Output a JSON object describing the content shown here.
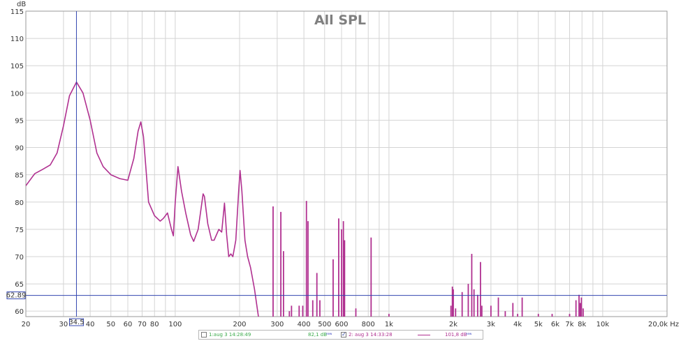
{
  "chart_data": {
    "type": "line",
    "title": "All SPL",
    "ylabel": "dB",
    "xunit": "Hz",
    "xscale": "log",
    "xlim": [
      20,
      20000
    ],
    "ylim": [
      59,
      115
    ],
    "x_tick_labels": [
      {
        "v": 20,
        "label": "20"
      },
      {
        "v": 30,
        "label": "30"
      },
      {
        "v": 40,
        "label": "40"
      },
      {
        "v": 50,
        "label": "50"
      },
      {
        "v": 60,
        "label": "60"
      },
      {
        "v": 70,
        "label": "70"
      },
      {
        "v": 80,
        "label": "80"
      },
      {
        "v": 100,
        "label": "100"
      },
      {
        "v": 200,
        "label": "200"
      },
      {
        "v": 300,
        "label": "300"
      },
      {
        "v": 400,
        "label": "400"
      },
      {
        "v": 500,
        "label": "500"
      },
      {
        "v": 600,
        "label": "600"
      },
      {
        "v": 800,
        "label": "800"
      },
      {
        "v": 1000,
        "label": "1k"
      },
      {
        "v": 2000,
        "label": "2k"
      },
      {
        "v": 3000,
        "label": "3k"
      },
      {
        "v": 4000,
        "label": "4k"
      },
      {
        "v": 5000,
        "label": "5k"
      },
      {
        "v": 6000,
        "label": "6k"
      },
      {
        "v": 7000,
        "label": "7k"
      },
      {
        "v": 8000,
        "label": "8k"
      },
      {
        "v": 10000,
        "label": "10k"
      },
      {
        "v": 20000,
        "label": "20,0k Hz"
      }
    ],
    "y_ticks": [
      60,
      65,
      70,
      75,
      80,
      85,
      90,
      95,
      100,
      105,
      110,
      115
    ],
    "grid": true,
    "cursor": {
      "x_label": "34.5",
      "x": 34.5,
      "y_label": "62.89",
      "y": 62.89
    },
    "series": [
      {
        "name": "2: aug 3 14:33:28",
        "color": "#b03090",
        "points": [
          [
            20,
            83
          ],
          [
            22,
            85.2
          ],
          [
            24,
            86
          ],
          [
            26,
            86.8
          ],
          [
            28,
            89
          ],
          [
            30,
            94
          ],
          [
            32,
            99.5
          ],
          [
            34.5,
            102
          ],
          [
            37,
            100
          ],
          [
            40,
            95
          ],
          [
            43,
            89
          ],
          [
            46,
            86.5
          ],
          [
            50,
            85
          ],
          [
            55,
            84.3
          ],
          [
            60,
            84
          ],
          [
            64,
            88
          ],
          [
            67,
            93
          ],
          [
            69,
            94.7
          ],
          [
            71,
            92
          ],
          [
            75,
            80
          ],
          [
            80,
            77.5
          ],
          [
            85,
            76.5
          ],
          [
            88,
            77
          ],
          [
            92,
            78
          ],
          [
            96,
            75
          ],
          [
            98,
            73.8
          ],
          [
            100,
            80
          ],
          [
            103,
            86.5
          ],
          [
            107,
            82
          ],
          [
            112,
            78
          ],
          [
            118,
            74
          ],
          [
            122,
            72.8
          ],
          [
            128,
            75
          ],
          [
            135,
            81.5
          ],
          [
            137,
            81
          ],
          [
            142,
            76
          ],
          [
            148,
            73
          ],
          [
            152,
            73
          ],
          [
            160,
            75
          ],
          [
            165,
            74.5
          ],
          [
            170,
            79.8
          ],
          [
            174,
            74
          ],
          [
            178,
            70
          ],
          [
            182,
            70.5
          ],
          [
            186,
            70
          ],
          [
            192,
            73
          ],
          [
            198,
            82
          ],
          [
            201,
            85.8
          ],
          [
            205,
            82
          ],
          [
            212,
            73
          ],
          [
            218,
            70
          ],
          [
            225,
            68
          ],
          [
            235,
            64
          ],
          [
            245,
            59
          ]
        ],
        "spikes": [
          [
            287,
            79.2
          ],
          [
            312,
            78.2
          ],
          [
            321,
            71
          ],
          [
            342,
            60
          ],
          [
            350,
            61
          ],
          [
            380,
            61
          ],
          [
            395,
            61
          ],
          [
            411,
            80.2
          ],
          [
            418,
            76.5
          ],
          [
            440,
            62
          ],
          [
            460,
            67
          ],
          [
            475,
            62
          ],
          [
            548,
            69.5
          ],
          [
            582,
            77
          ],
          [
            600,
            75
          ],
          [
            612,
            76.5
          ],
          [
            620,
            73
          ],
          [
            700,
            60.5
          ],
          [
            825,
            73.5
          ],
          [
            1000,
            59.5
          ],
          [
            1950,
            61
          ],
          [
            1980,
            64.5
          ],
          [
            2000,
            64
          ],
          [
            2050,
            60.5
          ],
          [
            2200,
            63.5
          ],
          [
            2350,
            65
          ],
          [
            2440,
            70.5
          ],
          [
            2500,
            64
          ],
          [
            2600,
            63
          ],
          [
            2680,
            69
          ],
          [
            2720,
            61
          ],
          [
            3000,
            61
          ],
          [
            3250,
            62.5
          ],
          [
            3500,
            60
          ],
          [
            3800,
            61.5
          ],
          [
            4000,
            59.5
          ],
          [
            4200,
            62.5
          ],
          [
            5000,
            59.5
          ],
          [
            5800,
            59.5
          ],
          [
            7000,
            59.5
          ],
          [
            7500,
            62
          ],
          [
            7750,
            63
          ],
          [
            7850,
            61.5
          ],
          [
            7950,
            62.5
          ],
          [
            8100,
            60.5
          ]
        ]
      }
    ]
  },
  "legend": {
    "item1_label": "1:aug 3 14:28:49",
    "item1_value": "82,1 dB",
    "item1_sup": "new",
    "item2_label": "2: aug 3 14:33:28",
    "item2_value": "101,8 dB",
    "item2_sup": "new"
  }
}
